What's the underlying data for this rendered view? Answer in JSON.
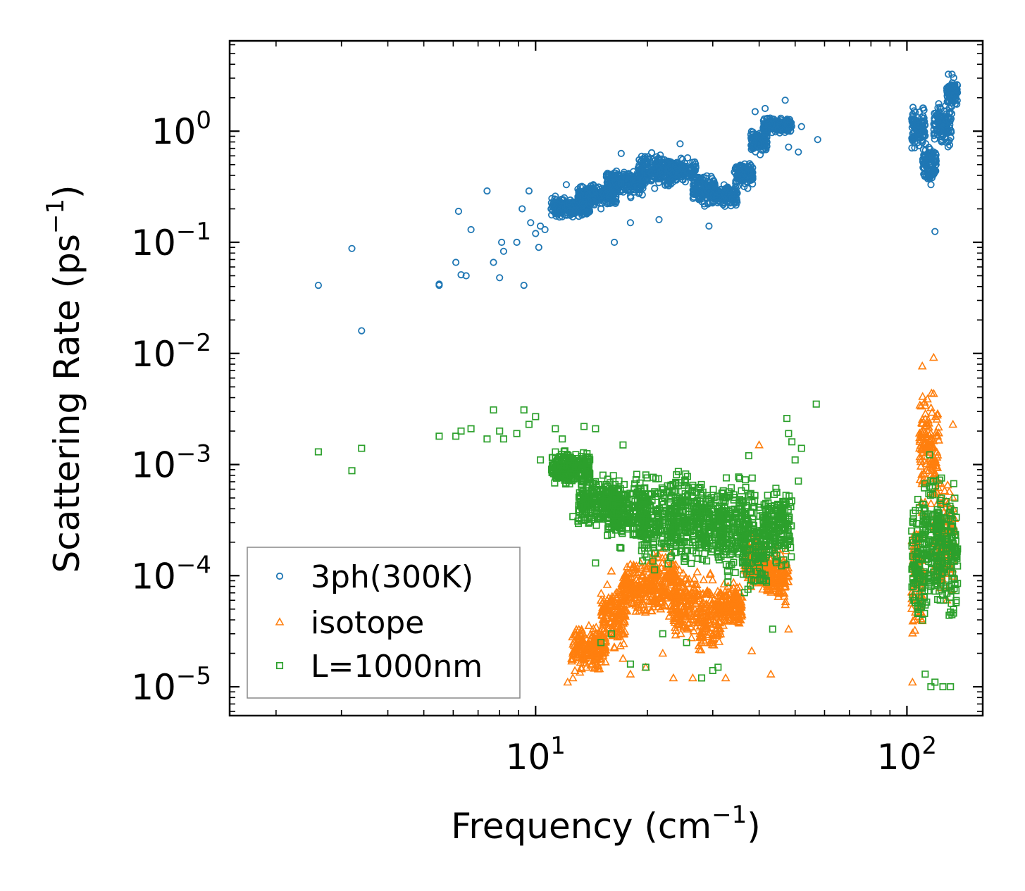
{
  "chart_data": {
    "type": "scatter",
    "title": "",
    "xlabel": "Frequency (cm",
    "xlabel_sup": "−1",
    "xlabel_end": ")",
    "ylabel": "Scattering Rate (ps",
    "ylabel_sup": "−1",
    "ylabel_end": ")",
    "xscale": "log",
    "yscale": "log",
    "xlim": [
      1.5,
      160
    ],
    "ylim": [
      5.5e-06,
      6.5
    ],
    "grid": false,
    "legend_position": "lower-left",
    "x_ticks": [
      {
        "value": 10,
        "base": "10",
        "exp": "1"
      },
      {
        "value": 100,
        "base": "10",
        "exp": "2"
      }
    ],
    "y_ticks": [
      {
        "value": 1,
        "base": "10",
        "exp": "0"
      },
      {
        "value": 0.1,
        "base": "10",
        "exp": "−1"
      },
      {
        "value": 0.01,
        "base": "10",
        "exp": "−2"
      },
      {
        "value": 0.001,
        "base": "10",
        "exp": "−3"
      },
      {
        "value": 0.0001,
        "base": "10",
        "exp": "−4"
      },
      {
        "value": 1e-05,
        "base": "10",
        "exp": "−5"
      }
    ],
    "series": [
      {
        "name": "3ph(300K)",
        "marker": "circle",
        "color": "#1f77b4",
        "points": [
          [
            2.6,
            0.041
          ],
          [
            3.2,
            0.088
          ],
          [
            3.4,
            0.016
          ],
          [
            5.5,
            0.042
          ],
          [
            5.5,
            0.041
          ],
          [
            6.1,
            0.066
          ],
          [
            6.2,
            0.19
          ],
          [
            6.3,
            0.051
          ],
          [
            6.5,
            0.05
          ],
          [
            6.7,
            0.13
          ],
          [
            7.4,
            0.29
          ],
          [
            7.7,
            0.066
          ],
          [
            8.0,
            0.048
          ],
          [
            8.1,
            0.1
          ],
          [
            8.2,
            0.083
          ],
          [
            8.9,
            0.1
          ],
          [
            9.2,
            0.2
          ],
          [
            9.3,
            0.041
          ],
          [
            9.6,
            0.29
          ],
          [
            9.7,
            0.15
          ],
          [
            10.0,
            0.12
          ],
          [
            10.2,
            0.09
          ],
          [
            10.3,
            0.14
          ],
          [
            10.6,
            0.13
          ],
          [
            11.3,
            0.26
          ],
          [
            11.5,
            0.2
          ],
          [
            11.8,
            0.17
          ],
          [
            12.1,
            0.33
          ],
          [
            12.4,
            0.24
          ],
          [
            13.0,
            0.3
          ],
          [
            13.5,
            0.22
          ],
          [
            14.3,
            0.33
          ],
          [
            15.0,
            0.2
          ],
          [
            16.3,
            0.1
          ],
          [
            17.0,
            0.63
          ],
          [
            18.0,
            0.15
          ],
          [
            21.5,
            0.16
          ],
          [
            24.5,
            0.77
          ],
          [
            27.0,
            0.47
          ],
          [
            29.3,
            0.14
          ],
          [
            34.3,
            0.43
          ],
          [
            39.0,
            1.5
          ],
          [
            41.5,
            1.6
          ],
          [
            47.0,
            1.9
          ],
          [
            48.0,
            0.72
          ],
          [
            51.0,
            0.65
          ],
          [
            52.0,
            1.1
          ],
          [
            57.5,
            0.84
          ],
          [
            119.0,
            0.125
          ]
        ],
        "bands": [
          {
            "x": [
              11.0,
              14.0
            ],
            "y": [
              0.16,
              0.26
            ]
          },
          {
            "x": [
              13.0,
              16.5
            ],
            "y": [
              0.2,
              0.35
            ]
          },
          {
            "x": [
              15.5,
              19.5
            ],
            "y": [
              0.24,
              0.5
            ]
          },
          {
            "x": [
              19.0,
              23.5
            ],
            "y": [
              0.28,
              0.7
            ]
          },
          {
            "x": [
              22.5,
              27.0
            ],
            "y": [
              0.32,
              0.6
            ]
          },
          {
            "x": [
              26.5,
              30.5
            ],
            "y": [
              0.2,
              0.45
            ]
          },
          {
            "x": [
              30.0,
              35.0
            ],
            "y": [
              0.2,
              0.35
            ]
          },
          {
            "x": [
              34.5,
              38.5
            ],
            "y": [
              0.3,
              0.55
            ]
          },
          {
            "x": [
              38.0,
              42.0
            ],
            "y": [
              0.6,
              1.1
            ]
          },
          {
            "x": [
              41.0,
              49.0
            ],
            "y": [
              0.9,
              1.4
            ]
          },
          {
            "x": [
              103.0,
              112.0
            ],
            "y": [
              0.6,
              1.8
            ]
          },
          {
            "x": [
              110.0,
              120.0
            ],
            "y": [
              0.3,
              0.9
            ]
          },
          {
            "x": [
              118.0,
              132.0
            ],
            "y": [
              0.6,
              2.2
            ]
          },
          {
            "x": [
              128.0,
              137.0
            ],
            "y": [
              1.5,
              3.3
            ]
          }
        ]
      },
      {
        "name": "isotope",
        "marker": "triangle",
        "color": "#ff7f0e",
        "points": [
          [
            12.2,
            1.1e-05
          ],
          [
            12.6,
            1.2e-05
          ],
          [
            14.5,
            3e-05
          ],
          [
            15.0,
            6e-05
          ],
          [
            16.0,
            0.00011
          ],
          [
            17.2,
            1.8e-05
          ],
          [
            18.0,
            1.3e-05
          ],
          [
            19.8,
            1.5e-05
          ],
          [
            22.0,
            2e-05
          ],
          [
            23.5,
            1.2e-05
          ],
          [
            26.5,
            1.2e-05
          ],
          [
            30.0,
            3e-05
          ],
          [
            32.5,
            1.2e-05
          ],
          [
            38.2,
            2.1e-05
          ],
          [
            39.0,
            0.00011
          ],
          [
            40.0,
            0.0015
          ],
          [
            43.0,
            1.3e-05
          ],
          [
            48.0,
            3.3e-05
          ],
          [
            103.5,
            1.1e-05
          ],
          [
            110.0,
            0.0077
          ],
          [
            112.0,
            0.0034
          ],
          [
            113.0,
            0.0024
          ],
          [
            118.0,
            0.0092
          ],
          [
            121.0,
            0.0018
          ],
          [
            133.0,
            0.0023
          ]
        ],
        "bands": [
          {
            "x": [
              12.5,
              15.5
            ],
            "y": [
              1.2e-05,
              4e-05
            ]
          },
          {
            "x": [
              15.0,
              17.5
            ],
            "y": [
              2e-05,
              0.0001
            ]
          },
          {
            "x": [
              17.0,
              21.0
            ],
            "y": [
              4e-05,
              0.00015
            ]
          },
          {
            "x": [
              20.5,
              24.0
            ],
            "y": [
              3e-05,
              0.0002
            ]
          },
          {
            "x": [
              23.5,
              27.5
            ],
            "y": [
              2e-05,
              0.00015
            ]
          },
          {
            "x": [
              27.5,
              31.5
            ],
            "y": [
              1.5e-05,
              0.00012
            ]
          },
          {
            "x": [
              31.5,
              36.0
            ],
            "y": [
              3e-05,
              0.0001
            ]
          },
          {
            "x": [
              36.5,
              41.5
            ],
            "y": [
              6e-05,
              0.0003
            ]
          },
          {
            "x": [
              42.0,
              48.0
            ],
            "y": [
              5e-05,
              0.0002
            ]
          },
          {
            "x": [
              103.0,
              110.0
            ],
            "y": [
              2e-05,
              0.0005
            ]
          },
          {
            "x": [
              108.0,
              122.0
            ],
            "y": [
              0.0003,
              0.006
            ]
          },
          {
            "x": [
              118.0,
              135.0
            ],
            "y": [
              5e-05,
              0.001
            ]
          }
        ]
      },
      {
        "name": "L=1000nm",
        "marker": "square",
        "color": "#2ca02c",
        "points": [
          [
            2.6,
            0.0013
          ],
          [
            3.2,
            0.00088
          ],
          [
            3.4,
            0.0014
          ],
          [
            5.5,
            0.0018
          ],
          [
            6.1,
            0.0018
          ],
          [
            6.3,
            0.002
          ],
          [
            6.7,
            0.0021
          ],
          [
            7.4,
            0.0017
          ],
          [
            7.7,
            0.0031
          ],
          [
            8.0,
            0.002
          ],
          [
            8.2,
            0.0017
          ],
          [
            8.9,
            0.0019
          ],
          [
            9.3,
            0.0031
          ],
          [
            9.6,
            0.0023
          ],
          [
            10.0,
            0.0027
          ],
          [
            10.3,
            0.0011
          ],
          [
            11.3,
            0.0021
          ],
          [
            11.8,
            0.0017
          ],
          [
            12.1,
            0.00078
          ],
          [
            12.6,
            0.00034
          ],
          [
            13.0,
            0.00031
          ],
          [
            13.5,
            0.0022
          ],
          [
            14.5,
            0.0021
          ],
          [
            14.5,
            0.00013
          ],
          [
            15.0,
            2.5e-05
          ],
          [
            16.0,
            3e-05
          ],
          [
            17.2,
            0.0015
          ],
          [
            18.0,
            1.6e-05
          ],
          [
            19.8,
            1.5e-05
          ],
          [
            22.0,
            3e-05
          ],
          [
            25.5,
            2.5e-05
          ],
          [
            28.0,
            1.2e-05
          ],
          [
            30.0,
            1.4e-05
          ],
          [
            31.0,
            1.5e-05
          ],
          [
            37.5,
            0.0012
          ],
          [
            43.5,
            3.3e-05
          ],
          [
            47.5,
            0.0026
          ],
          [
            48.0,
            0.0019
          ],
          [
            49.0,
            0.0016
          ],
          [
            50.0,
            0.0011
          ],
          [
            51.0,
            0.00071
          ],
          [
            52.0,
            0.0014
          ],
          [
            57.0,
            0.0035
          ],
          [
            112.0,
            1.3e-05
          ],
          [
            116.0,
            1e-05
          ],
          [
            119.0,
            1.1e-05
          ],
          [
            125.0,
            1e-05
          ],
          [
            131.0,
            1e-05
          ]
        ],
        "bands": [
          {
            "x": [
              11.0,
              14.0
            ],
            "y": [
              0.0006,
              0.0015
            ]
          },
          {
            "x": [
              13.0,
              17.0
            ],
            "y": [
              0.00025,
              0.0009
            ]
          },
          {
            "x": [
              15.5,
              20.0
            ],
            "y": [
              0.00015,
              0.0009
            ]
          },
          {
            "x": [
              19.0,
              24.0
            ],
            "y": [
              0.0001,
              0.001
            ]
          },
          {
            "x": [
              23.0,
              28.0
            ],
            "y": [
              0.0001,
              0.0011
            ]
          },
          {
            "x": [
              27.0,
              32.0
            ],
            "y": [
              0.0001,
              0.0008
            ]
          },
          {
            "x": [
              31.0,
              37.0
            ],
            "y": [
              8e-05,
              0.001
            ]
          },
          {
            "x": [
              36.0,
              42.0
            ],
            "y": [
              5e-05,
              0.0009
            ]
          },
          {
            "x": [
              41.0,
              49.0
            ],
            "y": [
              0.0001,
              0.0008
            ]
          },
          {
            "x": [
              103.0,
              112.0
            ],
            "y": [
              2e-05,
              0.0008
            ]
          },
          {
            "x": [
              110.0,
              124.0
            ],
            "y": [
              3e-05,
              0.0015
            ]
          },
          {
            "x": [
              120.0,
              137.0
            ],
            "y": [
              3e-05,
              0.0009
            ]
          }
        ]
      }
    ]
  }
}
